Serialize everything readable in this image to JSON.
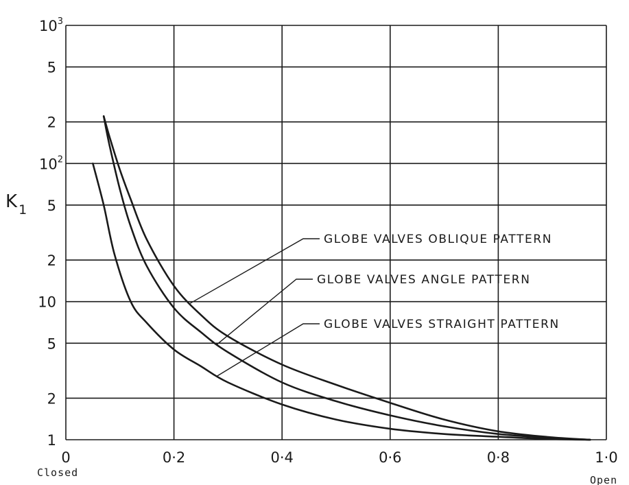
{
  "chart_data": {
    "type": "line",
    "title": "",
    "xlabel": "",
    "ylabel": "K",
    "ylabel_subscript": "1",
    "x_scale": "linear",
    "y_scale": "log",
    "xlim": [
      0,
      1.0
    ],
    "ylim": [
      1,
      1000
    ],
    "grid": true,
    "x_ticks": [
      {
        "value": 0,
        "label": "0"
      },
      {
        "value": 0.2,
        "label": "0·2"
      },
      {
        "value": 0.4,
        "label": "0·4"
      },
      {
        "value": 0.6,
        "label": "0·6"
      },
      {
        "value": 0.8,
        "label": "0·8"
      },
      {
        "value": 1.0,
        "label": "1·0"
      }
    ],
    "x_end_labels": {
      "left": "Closed",
      "right": "Open"
    },
    "y_ticks": [
      {
        "value": 1,
        "label": "1",
        "sup": ""
      },
      {
        "value": 2,
        "label": "2",
        "sup": ""
      },
      {
        "value": 5,
        "label": "5",
        "sup": ""
      },
      {
        "value": 10,
        "label": "10",
        "sup": ""
      },
      {
        "value": 20,
        "label": "2",
        "sup": ""
      },
      {
        "value": 50,
        "label": "5",
        "sup": ""
      },
      {
        "value": 100,
        "label": "10",
        "sup": "2"
      },
      {
        "value": 200,
        "label": "2",
        "sup": ""
      },
      {
        "value": 500,
        "label": "5",
        "sup": ""
      },
      {
        "value": 1000,
        "label": "10",
        "sup": "3"
      }
    ],
    "series": [
      {
        "name": "GLOBE VALVES OBLIQUE PATTERN",
        "x": [
          0.07,
          0.08,
          0.1,
          0.12,
          0.15,
          0.2,
          0.25,
          0.3,
          0.4,
          0.5,
          0.6,
          0.7,
          0.8,
          0.9,
          0.97
        ],
        "y": [
          220,
          160,
          90,
          55,
          28,
          13,
          8,
          5.6,
          3.5,
          2.5,
          1.85,
          1.4,
          1.15,
          1.04,
          1.0
        ]
      },
      {
        "name": "GLOBE VALVES ANGLE PATTERN",
        "x": [
          0.07,
          0.08,
          0.1,
          0.12,
          0.15,
          0.2,
          0.25,
          0.3,
          0.4,
          0.5,
          0.6,
          0.7,
          0.8,
          0.9,
          0.97
        ],
        "y": [
          220,
          140,
          65,
          35,
          18,
          9,
          6,
          4.3,
          2.6,
          1.9,
          1.5,
          1.25,
          1.1,
          1.03,
          1.0
        ]
      },
      {
        "name": "GLOBE VALVES STRAIGHT PATTERN",
        "x": [
          0.05,
          0.07,
          0.09,
          0.12,
          0.15,
          0.2,
          0.25,
          0.3,
          0.4,
          0.5,
          0.6,
          0.7,
          0.8,
          0.9,
          0.97
        ],
        "y": [
          100,
          50,
          22,
          10,
          7,
          4.5,
          3.4,
          2.6,
          1.8,
          1.4,
          1.2,
          1.1,
          1.05,
          1.01,
          1.0
        ]
      }
    ],
    "annotations": [
      {
        "text": "GLOBE VALVES OBLIQUE PATTERN",
        "series": 0,
        "at_x": 0.23
      },
      {
        "text": "GLOBE VALVES ANGLE PATTERN",
        "series": 1,
        "at_x": 0.28
      },
      {
        "text": "GLOBE VALVES STRAIGHT PATTERN",
        "series": 2,
        "at_x": 0.28
      }
    ]
  }
}
